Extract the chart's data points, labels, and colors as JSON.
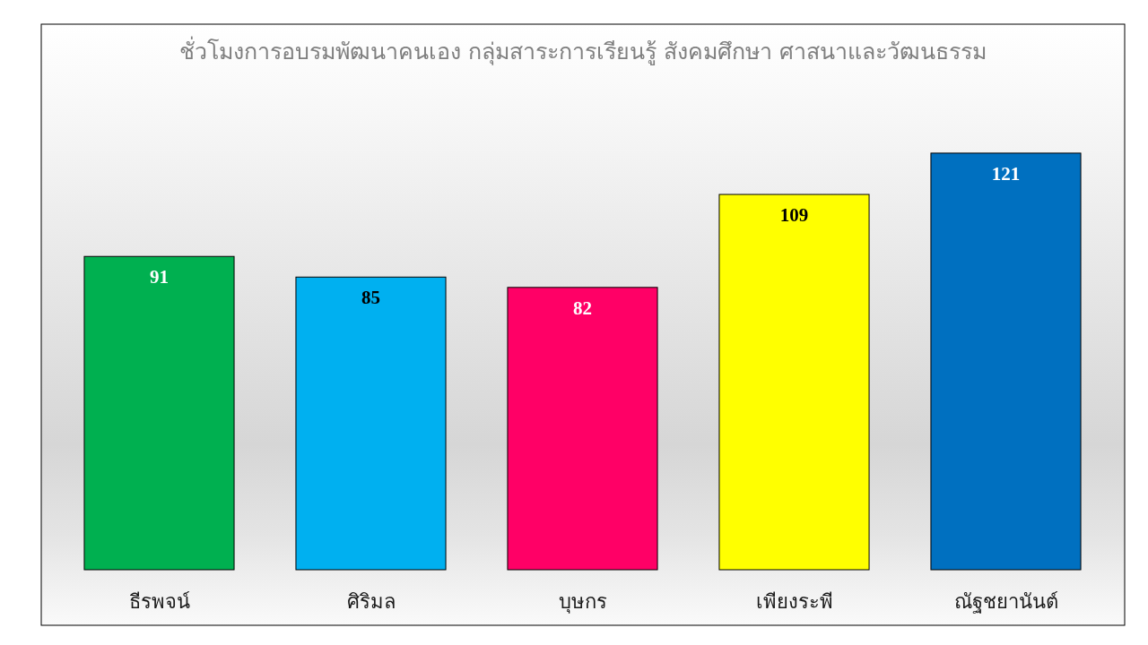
{
  "chart_data": {
    "type": "bar",
    "title": "ชั่วโมงการอบรมพัฒนาคนเอง กลุ่มสาระการเรียนรู้ สังคมศึกษา ศาสนาและวัฒนธรรม",
    "categories": [
      "ธีรพจน์",
      "ศิริมล",
      "บุษกร",
      "เพียงระพี",
      "ณัฐชยานันต์"
    ],
    "values": [
      91,
      85,
      82,
      109,
      121
    ],
    "colors": [
      "#00b050",
      "#00b0f0",
      "#ff0066",
      "#ffff00",
      "#0070c0"
    ],
    "data_labels": true
  }
}
